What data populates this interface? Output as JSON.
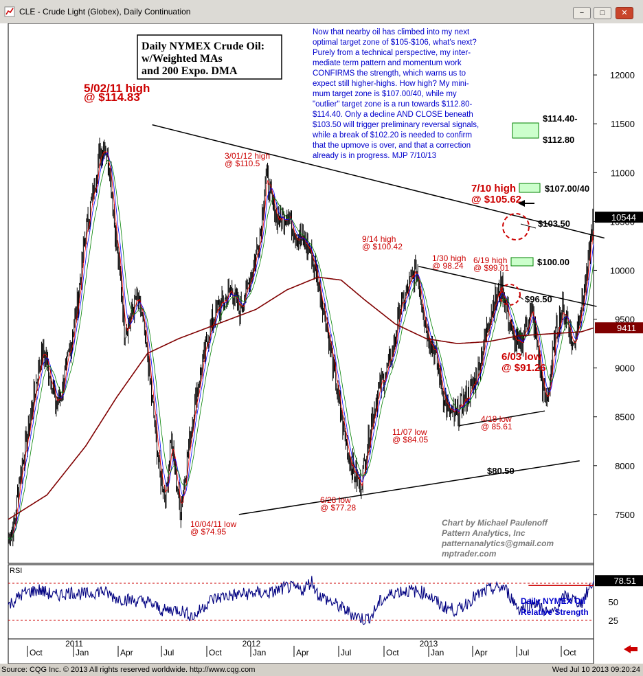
{
  "window": {
    "title": "CLE - Crude Light (Globex), Daily Continuation",
    "minimize": "−",
    "maximize": "□",
    "close": "✕"
  },
  "status": {
    "source": "Source: CQG Inc. © 2013 All rights reserved worldwide. http://www.cqg.com",
    "timestamp": "Wed Jul 10 2013 09:20:24"
  },
  "colors": {
    "price": "#000000",
    "ma_short": "#ff0000",
    "ma_mid": "#0000ff",
    "ma_long": "#008000",
    "dma200": "#800000",
    "rsi": "#000080",
    "annotation_red": "#cc0000",
    "commentary_blue": "#0000cc",
    "target_zone": "#ccffcc"
  },
  "chart_data": [
    {
      "type": "line",
      "title": "Daily NYMEX Crude Oil:",
      "subtitle": [
        "w/Weighted MAs",
        "and 200 Expo. DMA"
      ],
      "ylim": [
        70,
        125
      ],
      "y_ticks": [
        "12000",
        "11500",
        "11000",
        "10500",
        "10000",
        "9500",
        "9000",
        "8500",
        "8000",
        "7500"
      ],
      "y_tick_values": [
        120,
        115,
        110,
        105,
        100,
        95,
        90,
        85,
        80,
        75
      ],
      "last_price_label": "10544",
      "last_price": 105.44,
      "dma_label": "9411",
      "dma_value": 94.11,
      "anchors": [
        [
          0,
          72.5
        ],
        [
          8,
          74
        ],
        [
          15,
          79
        ],
        [
          25,
          83
        ],
        [
          35,
          88
        ],
        [
          45,
          92
        ],
        [
          55,
          89
        ],
        [
          62,
          86
        ],
        [
          70,
          88
        ],
        [
          80,
          92
        ],
        [
          90,
          97
        ],
        [
          100,
          104
        ],
        [
          110,
          108
        ],
        [
          118,
          112
        ],
        [
          125,
          113
        ],
        [
          132,
          110
        ],
        [
          138,
          104
        ],
        [
          145,
          99
        ],
        [
          150,
          94
        ],
        [
          158,
          95
        ],
        [
          165,
          97
        ],
        [
          172,
          95.5
        ],
        [
          180,
          91
        ],
        [
          188,
          85
        ],
        [
          196,
          79
        ],
        [
          204,
          77
        ],
        [
          210,
          83
        ],
        [
          216,
          79
        ],
        [
          222,
          75.5
        ],
        [
          230,
          80
        ],
        [
          240,
          86
        ],
        [
          250,
          90
        ],
        [
          260,
          94
        ],
        [
          270,
          96
        ],
        [
          280,
          97
        ],
        [
          288,
          98
        ],
        [
          298,
          96
        ],
        [
          308,
          98
        ],
        [
          318,
          101
        ],
        [
          326,
          104
        ],
        [
          333,
          110
        ],
        [
          340,
          107
        ],
        [
          350,
          105
        ],
        [
          360,
          106
        ],
        [
          370,
          104
        ],
        [
          380,
          103
        ],
        [
          390,
          102
        ],
        [
          400,
          99
        ],
        [
          410,
          95
        ],
        [
          420,
          90
        ],
        [
          430,
          85
        ],
        [
          440,
          81
        ],
        [
          448,
          79
        ],
        [
          455,
          78
        ],
        [
          462,
          81
        ],
        [
          470,
          85
        ],
        [
          480,
          88
        ],
        [
          490,
          90
        ],
        [
          498,
          92
        ],
        [
          505,
          96
        ],
        [
          512,
          97
        ],
        [
          520,
          99
        ],
        [
          528,
          100
        ],
        [
          534,
          97
        ],
        [
          540,
          94
        ],
        [
          550,
          92
        ],
        [
          560,
          88
        ],
        [
          568,
          85.5
        ],
        [
          576,
          85
        ],
        [
          584,
          86
        ],
        [
          592,
          87
        ],
        [
          600,
          88
        ],
        [
          608,
          90
        ],
        [
          616,
          93
        ],
        [
          624,
          96
        ],
        [
          632,
          97.5
        ],
        [
          638,
          98.2
        ],
        [
          644,
          96
        ],
        [
          652,
          93
        ],
        [
          660,
          92
        ],
        [
          668,
          94
        ],
        [
          676,
          96
        ],
        [
          684,
          92
        ],
        [
          690,
          88
        ],
        [
          695,
          86.3
        ],
        [
          700,
          89
        ],
        [
          708,
          94
        ],
        [
          716,
          96
        ],
        [
          722,
          95
        ],
        [
          730,
          92
        ],
        [
          736,
          95
        ],
        [
          742,
          97
        ],
        [
          748,
          99.5
        ],
        [
          752,
          103
        ],
        [
          756,
          105.4
        ]
      ],
      "dma_anchors": [
        [
          0,
          74.5
        ],
        [
          50,
          77
        ],
        [
          100,
          82
        ],
        [
          140,
          87
        ],
        [
          180,
          91.5
        ],
        [
          220,
          93
        ],
        [
          270,
          94.5
        ],
        [
          320,
          96
        ],
        [
          360,
          98
        ],
        [
          400,
          99.3
        ],
        [
          430,
          99
        ],
        [
          460,
          97
        ],
        [
          500,
          94.5
        ],
        [
          540,
          93
        ],
        [
          580,
          92.5
        ],
        [
          620,
          92.7
        ],
        [
          660,
          93.3
        ],
        [
          700,
          93.5
        ],
        [
          740,
          93.7
        ],
        [
          756,
          94.1
        ]
      ],
      "trendlines": [
        {
          "from": [
            186,
            114.9
          ],
          "to": [
            770,
            103.3
          ]
        },
        {
          "from": [
            530,
            100.4
          ],
          "to": [
            760,
            96.3
          ]
        },
        {
          "from": [
            298,
            75
          ],
          "to": [
            738,
            80.5
          ]
        },
        {
          "from": [
            583,
            84.1
          ],
          "to": [
            693,
            85.6
          ]
        }
      ],
      "annotations": [
        {
          "label": "5/02/11 high",
          "label2": "@ $114.83"
        },
        {
          "label": "3/01/12 high",
          "label2": "@ $110.5"
        },
        {
          "label": "9/14 high",
          "label2": "@ $100.42"
        },
        {
          "label": "1/30 high",
          "label2": "@ 98.24"
        },
        {
          "label": "6/19 high",
          "label2": "@ $99.01"
        },
        {
          "label": "7/10 high",
          "label2": "@ $105.62"
        },
        {
          "label": "6/03 low",
          "label2": "@ $91.26"
        },
        {
          "label": "4/18 low",
          "label2": "@ 85.61"
        },
        {
          "label": "11/07 low",
          "label2": "@ $84.05"
        },
        {
          "label": "6/28 low",
          "label2": "@ $77.28"
        },
        {
          "label": "10/04/11 low",
          "label2": "@ $74.95"
        }
      ],
      "levels": {
        "target_top_1": "$114.40-",
        "target_top_2": "$112.80",
        "target_mid": "$107.00/40",
        "level_1035": "$103.50",
        "level_100": "$100.00",
        "level_965": "$96.50",
        "level_805": "$80.50"
      },
      "commentary": [
        "Now that nearby oil has climbed into my next",
        "optimal target zone of $105-$106, what's next?",
        "Purely from a technical perspective, my inter-",
        "mediate term pattern and momentum work",
        "CONFIRMS the strength, which warns us to",
        "expect still higher-highs. How high?  My mini-",
        "mum target zone is $107.00/40, while my",
        "\"outlier\" target zone is a run towards $112.80-",
        "$114.40.  Only a decline AND CLOSE beneath",
        "$103.50 will trigger preliminary reversal signals,",
        "while a break of $102.20 is needed to confirm",
        "that the upmove is over, and that a correction",
        "already is in progress.  MJP  7/10/13"
      ],
      "credits": [
        "Chart by Michael Paulenoff",
        "Pattern Analytics, Inc",
        "patternanalytics@gmail.com",
        "mptrader.com"
      ]
    },
    {
      "type": "line",
      "title": "RSI",
      "ylim": [
        0,
        100
      ],
      "y_ticks": [
        "50",
        "25"
      ],
      "y_tick_values": [
        50,
        25
      ],
      "last_value_label": "78.51",
      "last_value": 78.51,
      "label": [
        "Daily NYMEX Oil",
        "Relative Strength"
      ],
      "anchors": [
        [
          0,
          45
        ],
        [
          20,
          62
        ],
        [
          40,
          66
        ],
        [
          60,
          58
        ],
        [
          80,
          63
        ],
        [
          100,
          60
        ],
        [
          120,
          65
        ],
        [
          140,
          55
        ],
        [
          160,
          52
        ],
        [
          180,
          50
        ],
        [
          200,
          38
        ],
        [
          220,
          40
        ],
        [
          240,
          30
        ],
        [
          260,
          52
        ],
        [
          280,
          58
        ],
        [
          300,
          60
        ],
        [
          320,
          62
        ],
        [
          340,
          62
        ],
        [
          360,
          70
        ],
        [
          380,
          66
        ],
        [
          392,
          78
        ],
        [
          400,
          60
        ],
        [
          420,
          48
        ],
        [
          440,
          36
        ],
        [
          460,
          26
        ],
        [
          470,
          32
        ],
        [
          480,
          50
        ],
        [
          500,
          64
        ],
        [
          520,
          65
        ],
        [
          540,
          62
        ],
        [
          560,
          44
        ],
        [
          580,
          38
        ],
        [
          600,
          55
        ],
        [
          620,
          66
        ],
        [
          640,
          70
        ],
        [
          660,
          40
        ],
        [
          680,
          50
        ],
        [
          700,
          32
        ],
        [
          720,
          58
        ],
        [
          740,
          48
        ],
        [
          756,
          78.5
        ]
      ],
      "resistance_level": 72
    }
  ],
  "x_axis": {
    "years": [
      "2011",
      "2012",
      "2013"
    ],
    "months": [
      "Oct",
      "Jan",
      "Apr",
      "Jul",
      "Oct",
      "Jan",
      "Apr",
      "Jul",
      "Oct",
      "Jan",
      "Apr",
      "Jul",
      "Oct"
    ]
  }
}
